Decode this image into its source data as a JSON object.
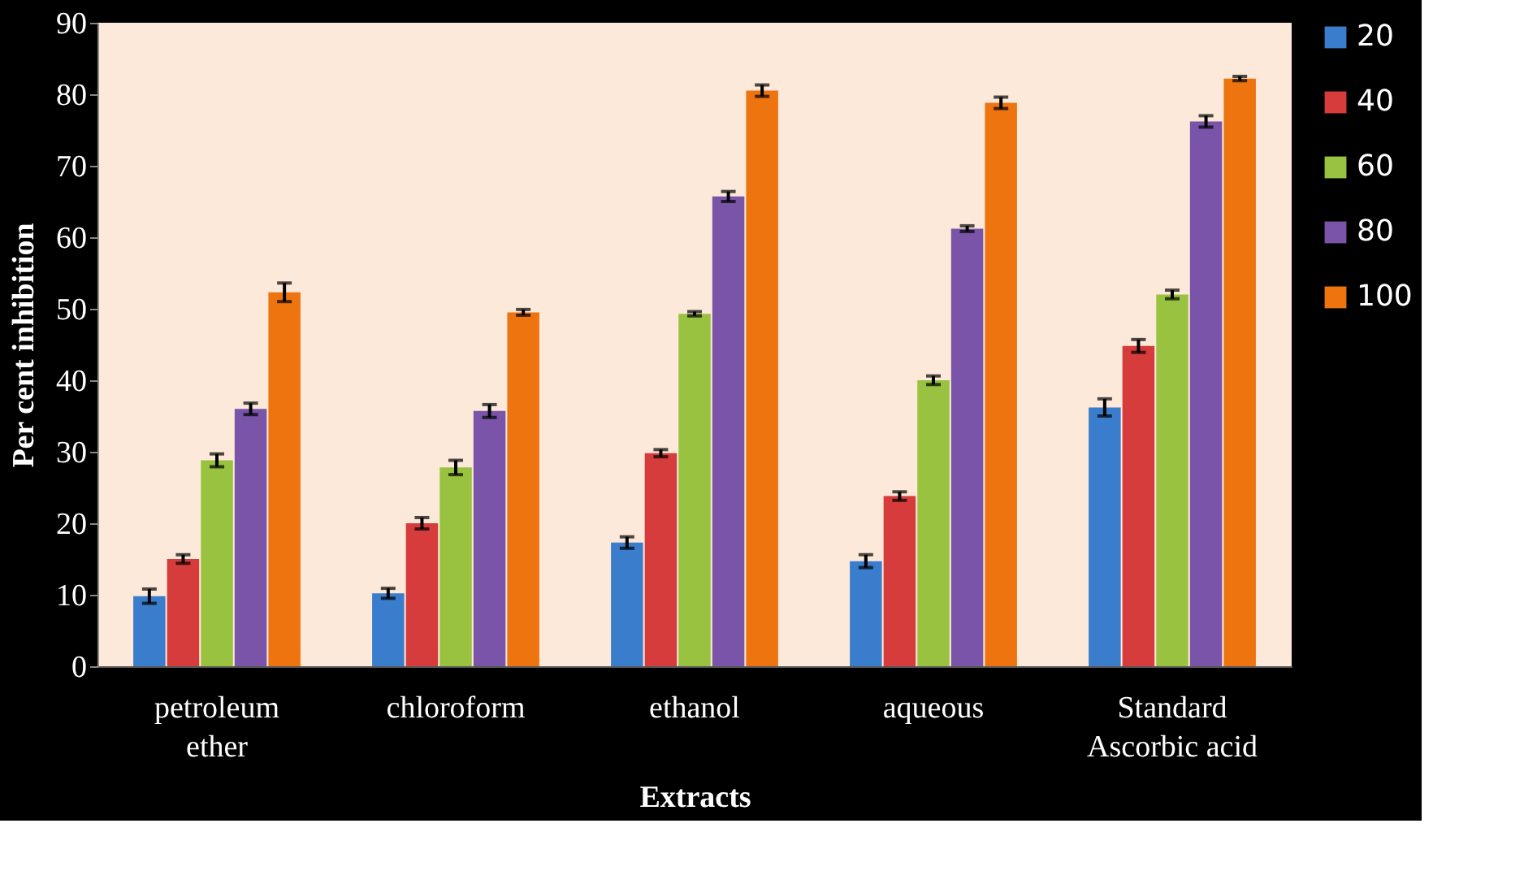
{
  "chart_data": {
    "type": "bar",
    "xlabel": "Extracts",
    "ylabel": "Per cent inhibition",
    "categories": [
      "petroleum ether",
      "chloroform",
      "ethanol",
      "aqueous",
      "Standard Ascorbic acid"
    ],
    "series": [
      {
        "name": "20",
        "color": "#3a7dcc",
        "values": [
          9.8,
          10.2,
          17.3,
          14.7,
          36.2
        ],
        "errors": [
          1.0,
          0.7,
          0.8,
          0.9,
          1.2
        ]
      },
      {
        "name": "40",
        "color": "#d63c3c",
        "values": [
          15.0,
          20.0,
          29.8,
          23.8,
          44.8
        ],
        "errors": [
          0.6,
          0.8,
          0.5,
          0.6,
          0.9
        ]
      },
      {
        "name": "60",
        "color": "#98c240",
        "values": [
          28.8,
          27.8,
          49.3,
          40.0,
          52.0
        ],
        "errors": [
          0.9,
          1.0,
          0.3,
          0.6,
          0.6
        ]
      },
      {
        "name": "80",
        "color": "#7a54a8",
        "values": [
          36.0,
          35.7,
          65.7,
          61.2,
          76.2
        ],
        "errors": [
          0.8,
          0.9,
          0.7,
          0.4,
          0.8
        ]
      },
      {
        "name": "100",
        "color": "#ee7410",
        "values": [
          52.3,
          49.5,
          80.5,
          78.8,
          82.2
        ],
        "errors": [
          1.3,
          0.4,
          0.8,
          0.8,
          0.3
        ]
      }
    ],
    "ylim": [
      0,
      90
    ],
    "yticks": [
      0,
      10,
      20,
      30,
      40,
      50,
      60,
      70,
      80,
      90
    ],
    "grid": false,
    "legend": "right"
  }
}
